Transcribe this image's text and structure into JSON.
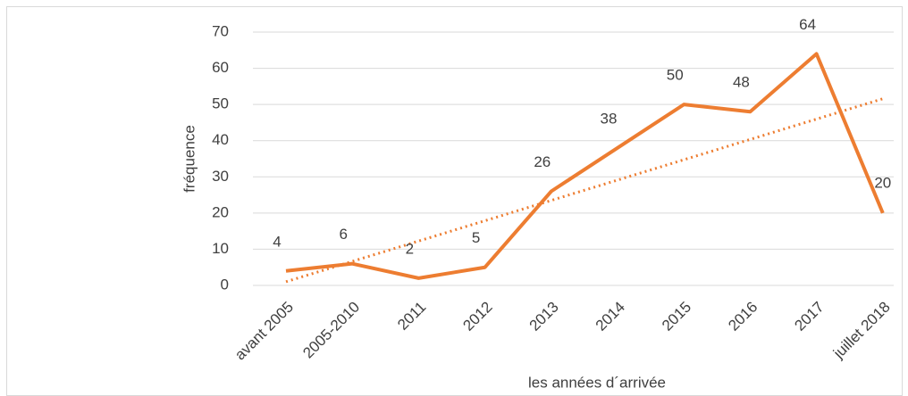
{
  "chart_data": {
    "type": "line",
    "xlabel": "les années d´arrivée",
    "ylabel": "fréquence",
    "categories": [
      "avant 2005",
      "2005-2010",
      "2011",
      "2012",
      "2013",
      "2014",
      "2015",
      "2016",
      "2017",
      "juillet 2018"
    ],
    "series": [
      {
        "color": "#ED7D31",
        "values": [
          4,
          6,
          2,
          5,
          26,
          38,
          50,
          48,
          64,
          20
        ]
      }
    ],
    "trendline": "linear",
    "ylim": [
      0,
      70
    ],
    "yticks": [
      0,
      10,
      20,
      30,
      40,
      50,
      60,
      70
    ],
    "grid": true,
    "data_labels": true
  }
}
